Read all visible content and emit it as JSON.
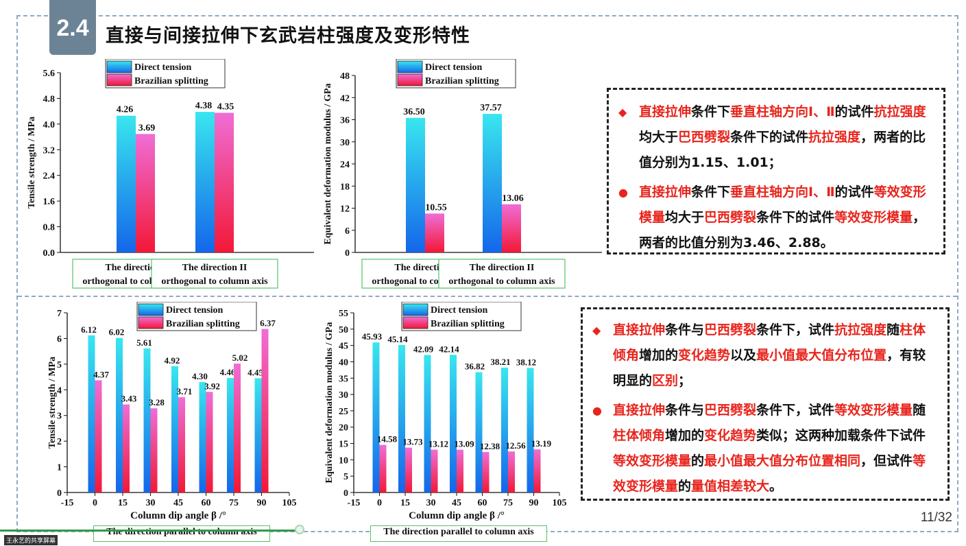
{
  "header": {
    "section_number": "2.4",
    "title": "直接与间接拉伸下玄武岩柱强度及变形特性"
  },
  "legend": {
    "direct": "Direct tension",
    "brazilian": "Brazilian splitting"
  },
  "colors": {
    "direct_top": "#39e6ef",
    "direct_bottom": "#1466ea",
    "braz_top": "#f06dd6",
    "braz_bottom": "#f21836",
    "accent_red": "#e8241c"
  },
  "chart_data": [
    {
      "type": "bar",
      "ylabel": "Tensile strength / MPa",
      "categories": [
        "The direction I orthogonal to column axis",
        "The direction II orthogonal to column axis"
      ],
      "category_lines": [
        [
          "The direction I",
          "orthogonal to column axis"
        ],
        [
          "The direction II",
          "orthogonal to column axis"
        ]
      ],
      "yticks": [
        "0.0",
        "0.8",
        "1.6",
        "2.4",
        "3.2",
        "4.0",
        "4.8",
        "5.6"
      ],
      "ylim": [
        0,
        5.6
      ],
      "series": [
        {
          "name": "Direct tension",
          "values": [
            4.26,
            4.38
          ],
          "labels": [
            "4.26",
            "4.38"
          ]
        },
        {
          "name": "Brazilian splitting",
          "values": [
            3.69,
            4.35
          ],
          "labels": [
            "3.69",
            "4.35"
          ]
        }
      ]
    },
    {
      "type": "bar",
      "ylabel": "Equivalent deformation modulus / GPa",
      "categories": [
        "The direction I orthogonal to column axis",
        "The direction II orthogonal to column axis"
      ],
      "category_lines": [
        [
          "The direction I",
          "orthogonal to column axis"
        ],
        [
          "The direction II",
          "orthogonal to column axis"
        ]
      ],
      "yticks": [
        "0",
        "6",
        "12",
        "18",
        "24",
        "30",
        "36",
        "42",
        "48"
      ],
      "ylim": [
        0,
        48
      ],
      "series": [
        {
          "name": "Direct tension",
          "values": [
            36.5,
            37.57
          ],
          "labels": [
            "36.50",
            "37.57"
          ]
        },
        {
          "name": "Brazilian splitting",
          "values": [
            10.55,
            13.06
          ],
          "labels": [
            "10.55",
            "13.06"
          ]
        }
      ]
    },
    {
      "type": "bar",
      "ylabel": "Tensile strength / MPa",
      "xlabel": "Column dip angle β /°",
      "x": [
        0,
        15,
        30,
        45,
        60,
        75,
        90
      ],
      "xticks": [
        "-15",
        "0",
        "15",
        "30",
        "45",
        "60",
        "75",
        "90",
        "105"
      ],
      "xlim": [
        -15,
        105
      ],
      "yticks": [
        "0",
        "1",
        "2",
        "3",
        "4",
        "5",
        "6",
        "7"
      ],
      "ylim": [
        0,
        7
      ],
      "series": [
        {
          "name": "Direct tension",
          "values": [
            6.12,
            6.02,
            5.61,
            4.92,
            4.3,
            4.46,
            4.45
          ],
          "labels": [
            "6.12",
            "6.02",
            "5.61",
            "4.92",
            "4.30",
            "4.46",
            "4.45"
          ]
        },
        {
          "name": "Brazilian splitting",
          "values": [
            4.37,
            3.43,
            3.28,
            3.71,
            3.92,
            5.02,
            6.37
          ],
          "labels": [
            "4.37",
            "3.43",
            "3.28",
            "3.71",
            "3.92",
            "5.02",
            "6.37"
          ]
        }
      ],
      "caption": "The direction parallel to column axis"
    },
    {
      "type": "bar",
      "ylabel": "Equivalent deformation modulus / GPa",
      "xlabel": "Column dip angle β /°",
      "x": [
        0,
        15,
        30,
        45,
        60,
        75,
        90
      ],
      "xticks": [
        "-15",
        "0",
        "15",
        "30",
        "45",
        "60",
        "75",
        "90",
        "105"
      ],
      "xlim": [
        -15,
        105
      ],
      "yticks": [
        "0",
        "5",
        "10",
        "15",
        "20",
        "25",
        "30",
        "35",
        "40",
        "45",
        "50",
        "55"
      ],
      "ylim": [
        0,
        55
      ],
      "series": [
        {
          "name": "Direct tension",
          "values": [
            45.93,
            45.14,
            42.09,
            42.14,
            36.82,
            38.21,
            38.12
          ],
          "labels": [
            "45.93",
            "45.14",
            "42.09",
            "42.14",
            "36.82",
            "38.21",
            "38.12"
          ]
        },
        {
          "name": "Brazilian splitting",
          "values": [
            14.58,
            13.73,
            13.12,
            13.09,
            12.38,
            12.56,
            13.19
          ],
          "labels": [
            "14.58",
            "13.73",
            "13.12",
            "13.09",
            "12.38",
            "12.56",
            "13.19"
          ]
        }
      ],
      "caption": "The direction parallel to column axis"
    }
  ],
  "notes_top": [
    {
      "bullet": "◆",
      "runs": [
        {
          "t": "直接拉伸",
          "r": true
        },
        {
          "t": "条件下",
          "r": false
        },
        {
          "t": "垂直柱轴方向Ⅰ、Ⅱ",
          "r": true
        },
        {
          "t": "的试件",
          "r": false
        },
        {
          "t": "抗拉强度",
          "r": true
        },
        {
          "t": "均大于",
          "r": false
        },
        {
          "t": "巴西劈裂",
          "r": true
        },
        {
          "t": "条件下的试件",
          "r": false
        },
        {
          "t": "抗拉强度",
          "r": true
        },
        {
          "t": "，两者的比值分别为1.15、1.01；",
          "r": false
        }
      ]
    },
    {
      "bullet": "●",
      "runs": [
        {
          "t": "直接拉伸",
          "r": true
        },
        {
          "t": "条件下",
          "r": false
        },
        {
          "t": "垂直柱轴方向Ⅰ、Ⅱ",
          "r": true
        },
        {
          "t": "的试件",
          "r": false
        },
        {
          "t": "等效变形模量",
          "r": true
        },
        {
          "t": "均大于",
          "r": false
        },
        {
          "t": "巴西劈裂",
          "r": true
        },
        {
          "t": "条件下的试件",
          "r": false
        },
        {
          "t": "等效变形模量",
          "r": true
        },
        {
          "t": "，两者的比值分别为3.46、2.88。",
          "r": false
        }
      ]
    }
  ],
  "notes_bottom": [
    {
      "bullet": "◆",
      "runs": [
        {
          "t": "直接拉伸",
          "r": true
        },
        {
          "t": "条件与",
          "r": false
        },
        {
          "t": "巴西劈裂",
          "r": true
        },
        {
          "t": "条件下，试件",
          "r": false
        },
        {
          "t": "抗拉强度",
          "r": true
        },
        {
          "t": "随",
          "r": false
        },
        {
          "t": "柱体倾角",
          "r": true
        },
        {
          "t": "增加的",
          "r": false
        },
        {
          "t": "变化趋势",
          "r": true
        },
        {
          "t": "以及",
          "r": false
        },
        {
          "t": "最小值最大值分布位置",
          "r": true
        },
        {
          "t": "，有较明显的",
          "r": false
        },
        {
          "t": "区别",
          "r": true
        },
        {
          "t": "；",
          "r": false
        }
      ]
    },
    {
      "bullet": "●",
      "runs": [
        {
          "t": "直接拉伸",
          "r": true
        },
        {
          "t": "条件与",
          "r": false
        },
        {
          "t": "巴西劈裂",
          "r": true
        },
        {
          "t": "条件下，试件",
          "r": false
        },
        {
          "t": "等效变形模量",
          "r": true
        },
        {
          "t": "随",
          "r": false
        },
        {
          "t": "柱体倾角",
          "r": true
        },
        {
          "t": "增加的",
          "r": false
        },
        {
          "t": "变化趋势",
          "r": true
        },
        {
          "t": "类似；这两种加载条件下试件",
          "r": false
        },
        {
          "t": "等效变形模量",
          "r": true
        },
        {
          "t": "的",
          "r": false
        },
        {
          "t": "最小值最大值分布位置相同",
          "r": true
        },
        {
          "t": "，但试件",
          "r": false
        },
        {
          "t": "等效变形模量",
          "r": true
        },
        {
          "t": "的",
          "r": false
        },
        {
          "t": "量值相差较大",
          "r": true
        },
        {
          "t": "。",
          "r": false
        }
      ]
    }
  ],
  "footer": {
    "page": "11/32",
    "share_label": "王永艺的共享屏幕",
    "progress": 0.31
  }
}
